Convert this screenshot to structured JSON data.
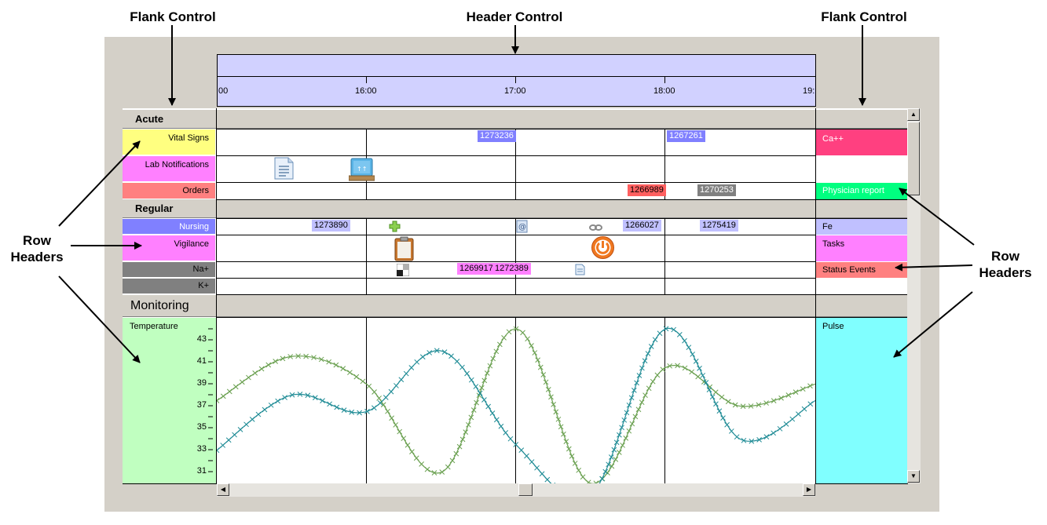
{
  "callouts": {
    "flank_left": "Flank Control",
    "header": "Header Control",
    "flank_right": "Flank Control",
    "row_headers_left": "Row\nHeaders",
    "row_headers_right": "Row\nHeaders"
  },
  "timeline": {
    "tick_labels": [
      "00",
      "16:00",
      "17:00",
      "18:00",
      "19:"
    ]
  },
  "groups": {
    "acute": "Acute",
    "regular": "Regular",
    "monitoring": "Monitoring"
  },
  "row_headers": {
    "vital_signs": "Vital Signs",
    "lab_notifications": "Lab Notifications",
    "orders": "Orders",
    "nursing": "Nursing",
    "vigilance": "Vigilance",
    "na": "Na+",
    "k": "K+",
    "temperature": "Temperature"
  },
  "flank_headers": {
    "ca": "Ca++",
    "physician_report": "Physician report",
    "fe": "Fe",
    "tasks": "Tasks",
    "status_events": "Status Events",
    "pulse": "Pulse"
  },
  "events": {
    "vital_1": "1273236",
    "vital_2": "1267261",
    "order_1": "1266989",
    "order_2": "1270253",
    "nursing_1": "1273890",
    "nursing_2": "1266027",
    "nursing_3": "1275419",
    "na_1": "1269917",
    "na_2": "1272389"
  },
  "y_axis": {
    "labels": [
      "43",
      "41",
      "39",
      "37",
      "35",
      "33",
      "31"
    ]
  },
  "icons": {
    "lab_1": "document-icon",
    "lab_2": "monitor-icon",
    "nursing_plus": "plus-icon",
    "nursing_at": "at-icon",
    "nursing_link": "link-icon",
    "vigilance_clipboard": "clipboard-icon",
    "vigilance_power": "power-icon",
    "na_checker": "checker-icon",
    "na_doc": "document-icon"
  },
  "colors": {
    "header_bg": "#d1d1ff",
    "vital_signs": "#ffff80",
    "lab_notifications": "#ff80ff",
    "orders": "#ff8080",
    "nursing": "#8080ff",
    "vigilance": "#ff80ff",
    "na_k": "#808080",
    "temperature": "#c0ffc0",
    "ca": "#ff4080",
    "physician_report": "#00ff80",
    "fe": "#c0c0ff",
    "tasks": "#ff80ff",
    "status_events": "#ff8080",
    "pulse": "#80ffff",
    "series_green": "#6aa050",
    "series_teal": "#208c96"
  },
  "chart_data": {
    "type": "line",
    "x": [
      15.0,
      15.5,
      16.0,
      16.5,
      17.0,
      17.5,
      18.0,
      18.5,
      19.0
    ],
    "series": [
      {
        "values": [
          37.5,
          41.5,
          39.0,
          31.0,
          44.0,
          30.0,
          40.5,
          37.0,
          39.0
        ]
      },
      {
        "values": [
          33.0,
          38.0,
          36.5,
          42.0,
          33.5,
          29.0,
          44.0,
          34.0,
          37.5
        ]
      }
    ],
    "xlim": [
      15.0,
      19.0
    ],
    "ylim": [
      30,
      45
    ]
  }
}
